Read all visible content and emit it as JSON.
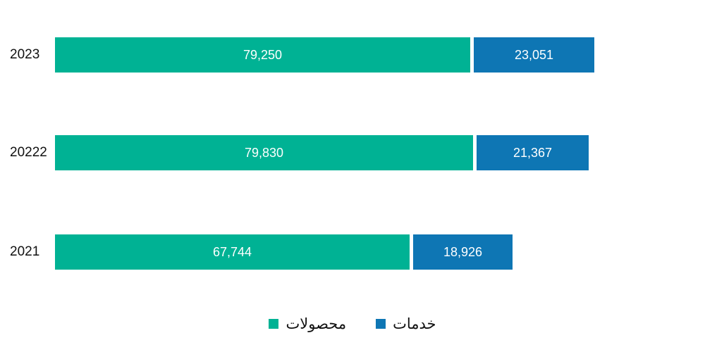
{
  "chart_data": {
    "type": "bar",
    "orientation": "horizontal",
    "stacked": true,
    "title": "",
    "xlabel": "",
    "ylabel": "",
    "grid": false,
    "legend_position": "bottom",
    "background_color": "#FFFFFF",
    "categories": [
      "2023",
      "20222",
      "2021"
    ],
    "series": [
      {
        "name": "محصولات",
        "color": "#00B294",
        "values": [
          79250,
          79830,
          67744
        ]
      },
      {
        "name": "خدمات",
        "color": "#0E76B4",
        "values": [
          23051,
          21367,
          18926
        ]
      }
    ],
    "value_labels": [
      [
        "79,250",
        "23,051"
      ],
      [
        "79,830",
        "21,367"
      ],
      [
        "67,744",
        "18,926"
      ]
    ],
    "value_label_color": "#FFFFFF",
    "category_label_color": "#111111"
  }
}
